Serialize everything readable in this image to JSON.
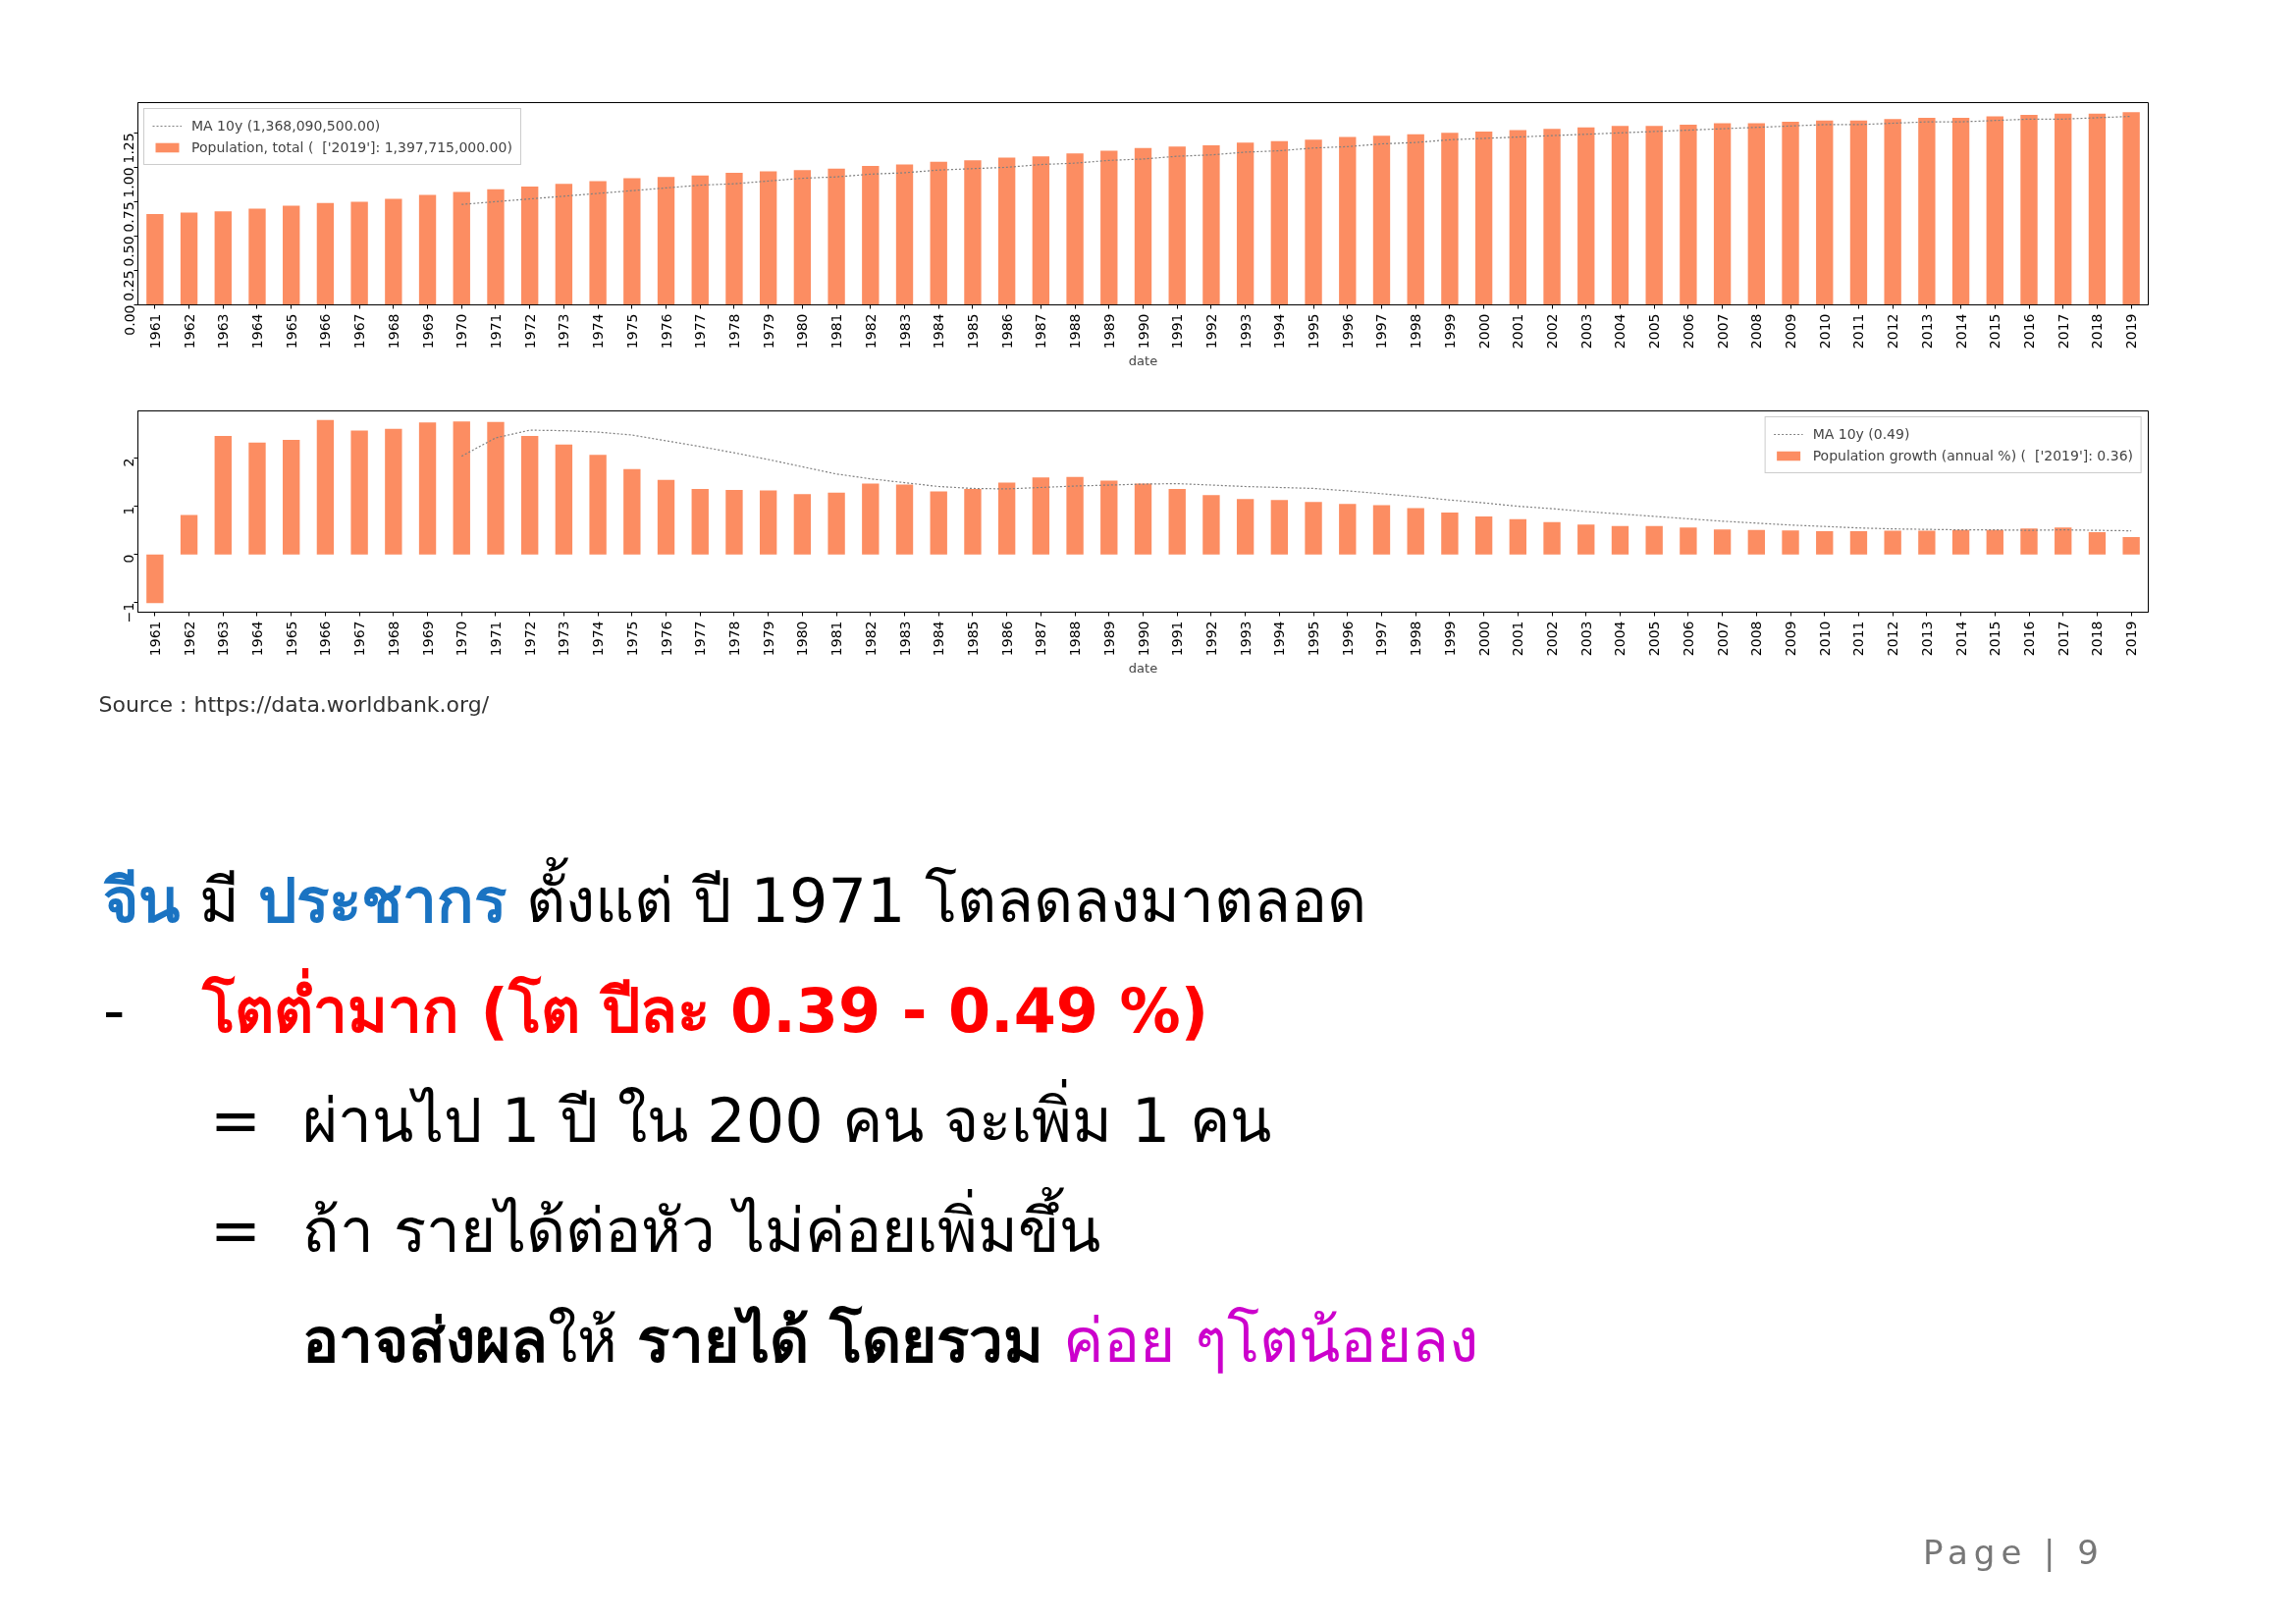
{
  "chart_data": [
    {
      "type": "bar",
      "xlabel": "date",
      "legend": "top left",
      "line_style": "dotted",
      "categories": [
        "1961",
        "1962",
        "1963",
        "1964",
        "1965",
        "1966",
        "1967",
        "1968",
        "1969",
        "1970",
        "1971",
        "1972",
        "1973",
        "1974",
        "1975",
        "1976",
        "1977",
        "1978",
        "1979",
        "1980",
        "1981",
        "1982",
        "1983",
        "1984",
        "1985",
        "1986",
        "1987",
        "1988",
        "1989",
        "1990",
        "1991",
        "1992",
        "1993",
        "1994",
        "1995",
        "1996",
        "1997",
        "1998",
        "1999",
        "2000",
        "2001",
        "2002",
        "2003",
        "2004",
        "2005",
        "2006",
        "2007",
        "2008",
        "2009",
        "2010",
        "2011",
        "2012",
        "2013",
        "2014",
        "2015",
        "2016",
        "2017",
        "2018",
        "2019"
      ],
      "ylim": [
        0,
        1.47
      ],
      "yticks": [
        {
          "value": 0,
          "label": "0.00"
        },
        0.25,
        {
          "value": 0.5,
          "label": "0.50"
        },
        0.75,
        {
          "value": 1,
          "label": "1.00"
        },
        1.25
      ],
      "series": [
        {
          "name": "MA 10y (1,368,090,500.00)",
          "type": "line",
          "color": "#808080",
          "values": [
            null,
            null,
            null,
            null,
            null,
            null,
            null,
            null,
            null,
            0.73,
            0.75,
            0.77,
            0.79,
            0.81,
            0.83,
            0.85,
            0.87,
            0.88,
            0.9,
            0.92,
            0.93,
            0.95,
            0.96,
            0.98,
            0.99,
            1.0,
            1.02,
            1.03,
            1.05,
            1.06,
            1.08,
            1.09,
            1.11,
            1.12,
            1.14,
            1.15,
            1.17,
            1.18,
            1.2,
            1.21,
            1.22,
            1.23,
            1.24,
            1.25,
            1.26,
            1.27,
            1.28,
            1.29,
            1.3,
            1.31,
            1.31,
            1.32,
            1.33,
            1.33,
            1.34,
            1.35,
            1.35,
            1.36,
            1.37
          ]
        },
        {
          "name": "Population, total (  ['2019']: 1,397,715,000.00)",
          "type": "bar",
          "color": "#fc8d62",
          "values": [
            0.66,
            0.67,
            0.68,
            0.7,
            0.72,
            0.74,
            0.75,
            0.77,
            0.8,
            0.82,
            0.84,
            0.86,
            0.88,
            0.9,
            0.92,
            0.93,
            0.94,
            0.96,
            0.97,
            0.98,
            0.99,
            1.01,
            1.02,
            1.04,
            1.05,
            1.07,
            1.08,
            1.1,
            1.12,
            1.14,
            1.15,
            1.16,
            1.18,
            1.19,
            1.2,
            1.22,
            1.23,
            1.24,
            1.25,
            1.26,
            1.27,
            1.28,
            1.29,
            1.3,
            1.3,
            1.31,
            1.32,
            1.32,
            1.33,
            1.34,
            1.34,
            1.35,
            1.36,
            1.36,
            1.37,
            1.38,
            1.39,
            1.39,
            1.4
          ]
        }
      ]
    },
    {
      "type": "bar",
      "xlabel": "date",
      "legend": "top right",
      "line_style": "dotted",
      "categories": [
        "1961",
        "1962",
        "1963",
        "1964",
        "1965",
        "1966",
        "1967",
        "1968",
        "1969",
        "1970",
        "1971",
        "1972",
        "1973",
        "1974",
        "1975",
        "1976",
        "1977",
        "1978",
        "1979",
        "1980",
        "1981",
        "1982",
        "1983",
        "1984",
        "1985",
        "1986",
        "1987",
        "1988",
        "1989",
        "1990",
        "1991",
        "1992",
        "1993",
        "1994",
        "1995",
        "1996",
        "1997",
        "1998",
        "1999",
        "2000",
        "2001",
        "2002",
        "2003",
        "2004",
        "2005",
        "2006",
        "2007",
        "2008",
        "2009",
        "2010",
        "2011",
        "2012",
        "2013",
        "2014",
        "2015",
        "2016",
        "2017",
        "2018",
        "2019"
      ],
      "ylim": [
        -1.2,
        2.98
      ],
      "yticks": [
        -1,
        0,
        1,
        2
      ],
      "series": [
        {
          "name": "MA 10y (0.49)",
          "type": "line",
          "color": "#808080",
          "values": [
            null,
            null,
            null,
            null,
            null,
            null,
            null,
            null,
            null,
            2.04,
            2.42,
            2.58,
            2.57,
            2.54,
            2.48,
            2.36,
            2.24,
            2.11,
            1.97,
            1.82,
            1.67,
            1.57,
            1.49,
            1.41,
            1.37,
            1.36,
            1.39,
            1.42,
            1.44,
            1.46,
            1.47,
            1.44,
            1.41,
            1.39,
            1.37,
            1.32,
            1.26,
            1.2,
            1.13,
            1.07,
            1.0,
            0.95,
            0.89,
            0.84,
            0.79,
            0.74,
            0.69,
            0.65,
            0.61,
            0.58,
            0.55,
            0.53,
            0.52,
            0.51,
            0.51,
            0.5,
            0.51,
            0.5,
            0.49
          ]
        },
        {
          "name": "Population growth (annual %) (  ['2019']: 0.36)",
          "type": "bar",
          "color": "#fc8d62",
          "values": [
            -1.01,
            0.82,
            2.46,
            2.32,
            2.38,
            2.79,
            2.57,
            2.61,
            2.74,
            2.76,
            2.75,
            2.46,
            2.28,
            2.07,
            1.77,
            1.55,
            1.36,
            1.34,
            1.33,
            1.25,
            1.28,
            1.47,
            1.45,
            1.31,
            1.36,
            1.49,
            1.6,
            1.61,
            1.53,
            1.47,
            1.36,
            1.23,
            1.15,
            1.13,
            1.09,
            1.05,
            1.02,
            0.96,
            0.87,
            0.79,
            0.73,
            0.67,
            0.62,
            0.59,
            0.59,
            0.56,
            0.52,
            0.51,
            0.5,
            0.48,
            0.48,
            0.49,
            0.49,
            0.51,
            0.51,
            0.54,
            0.56,
            0.46,
            0.36
          ]
        }
      ],
      "annotations": [
        "Source : https://data.worldbank.org/"
      ]
    },
    {
      "type": "other",
      "annotations": [
        "จีน",
        "มี",
        "ประชากร",
        "ตั้งแต่ ปี 1971 โตลดลงมาตลอด",
        "-",
        "โตต่ำมาก (โต ปีละ 0.39 - 0.49 %)",
        "=",
        "ผ่านไป 1 ปี ใน 200 คน จะเพิ่ม 1 คน",
        "=",
        "ถ้า รายได้ต่อหัว ไม่ค่อยเพิ่มขึ้น",
        "อาจส่งผล",
        "ให้",
        "รายได้ โดยรวม",
        "ค่อย ๆโตน้อยลง",
        "Page | 9"
      ]
    }
  ]
}
